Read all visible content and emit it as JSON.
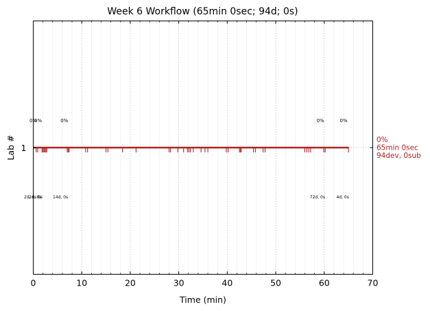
{
  "chart_data": {
    "type": "event-timeline",
    "title": "Week 6 Workflow (65min 0sec; 94d; 0s)",
    "xlabel": "Time (min)",
    "ylabel": "Lab #",
    "xlim": [
      0,
      70
    ],
    "xticks": [
      0,
      10,
      20,
      30,
      40,
      50,
      60,
      70
    ],
    "yticks": [
      1
    ],
    "line_color": "#b22222",
    "grid": true,
    "series": [
      {
        "lab": 1,
        "start": 0,
        "end": 65,
        "events": [
          0.6,
          0.9,
          1.8,
          2.0,
          2.2,
          2.4,
          2.6,
          2.8,
          7.0,
          7.2,
          7.4,
          10.8,
          11.2,
          15.0,
          15.4,
          18.4,
          21.2,
          28.0,
          28.3,
          29.8,
          31.0,
          31.8,
          32.1,
          32.4,
          33.0,
          34.6,
          35.4,
          36.0,
          39.8,
          40.2,
          42.5,
          42.7,
          42.9,
          45.4,
          45.8,
          47.4,
          47.8,
          56.0,
          56.4,
          56.8,
          57.2,
          59.9,
          60.2,
          65.0
        ],
        "top_annotations": [
          {
            "x": 0.0,
            "text": "0%"
          },
          {
            "x": 1.0,
            "text": "0%"
          },
          {
            "x": 6.4,
            "text": "0%"
          },
          {
            "x": 59.2,
            "text": "0%"
          },
          {
            "x": 64.0,
            "text": "0%"
          }
        ],
        "bottom_annotations": [
          {
            "x": -0.6,
            "text": "2d, 0s"
          },
          {
            "x": 0.4,
            "text": "2d, 0s"
          },
          {
            "x": 1.4,
            "text": "0s"
          },
          {
            "x": 5.6,
            "text": "14d, 0s"
          },
          {
            "x": 58.6,
            "text": "72d, 0s"
          },
          {
            "x": 63.8,
            "text": "4d, 0s"
          }
        ],
        "end_label": [
          "0%",
          "65min 0sec",
          "94dev, 0sub"
        ]
      }
    ]
  }
}
